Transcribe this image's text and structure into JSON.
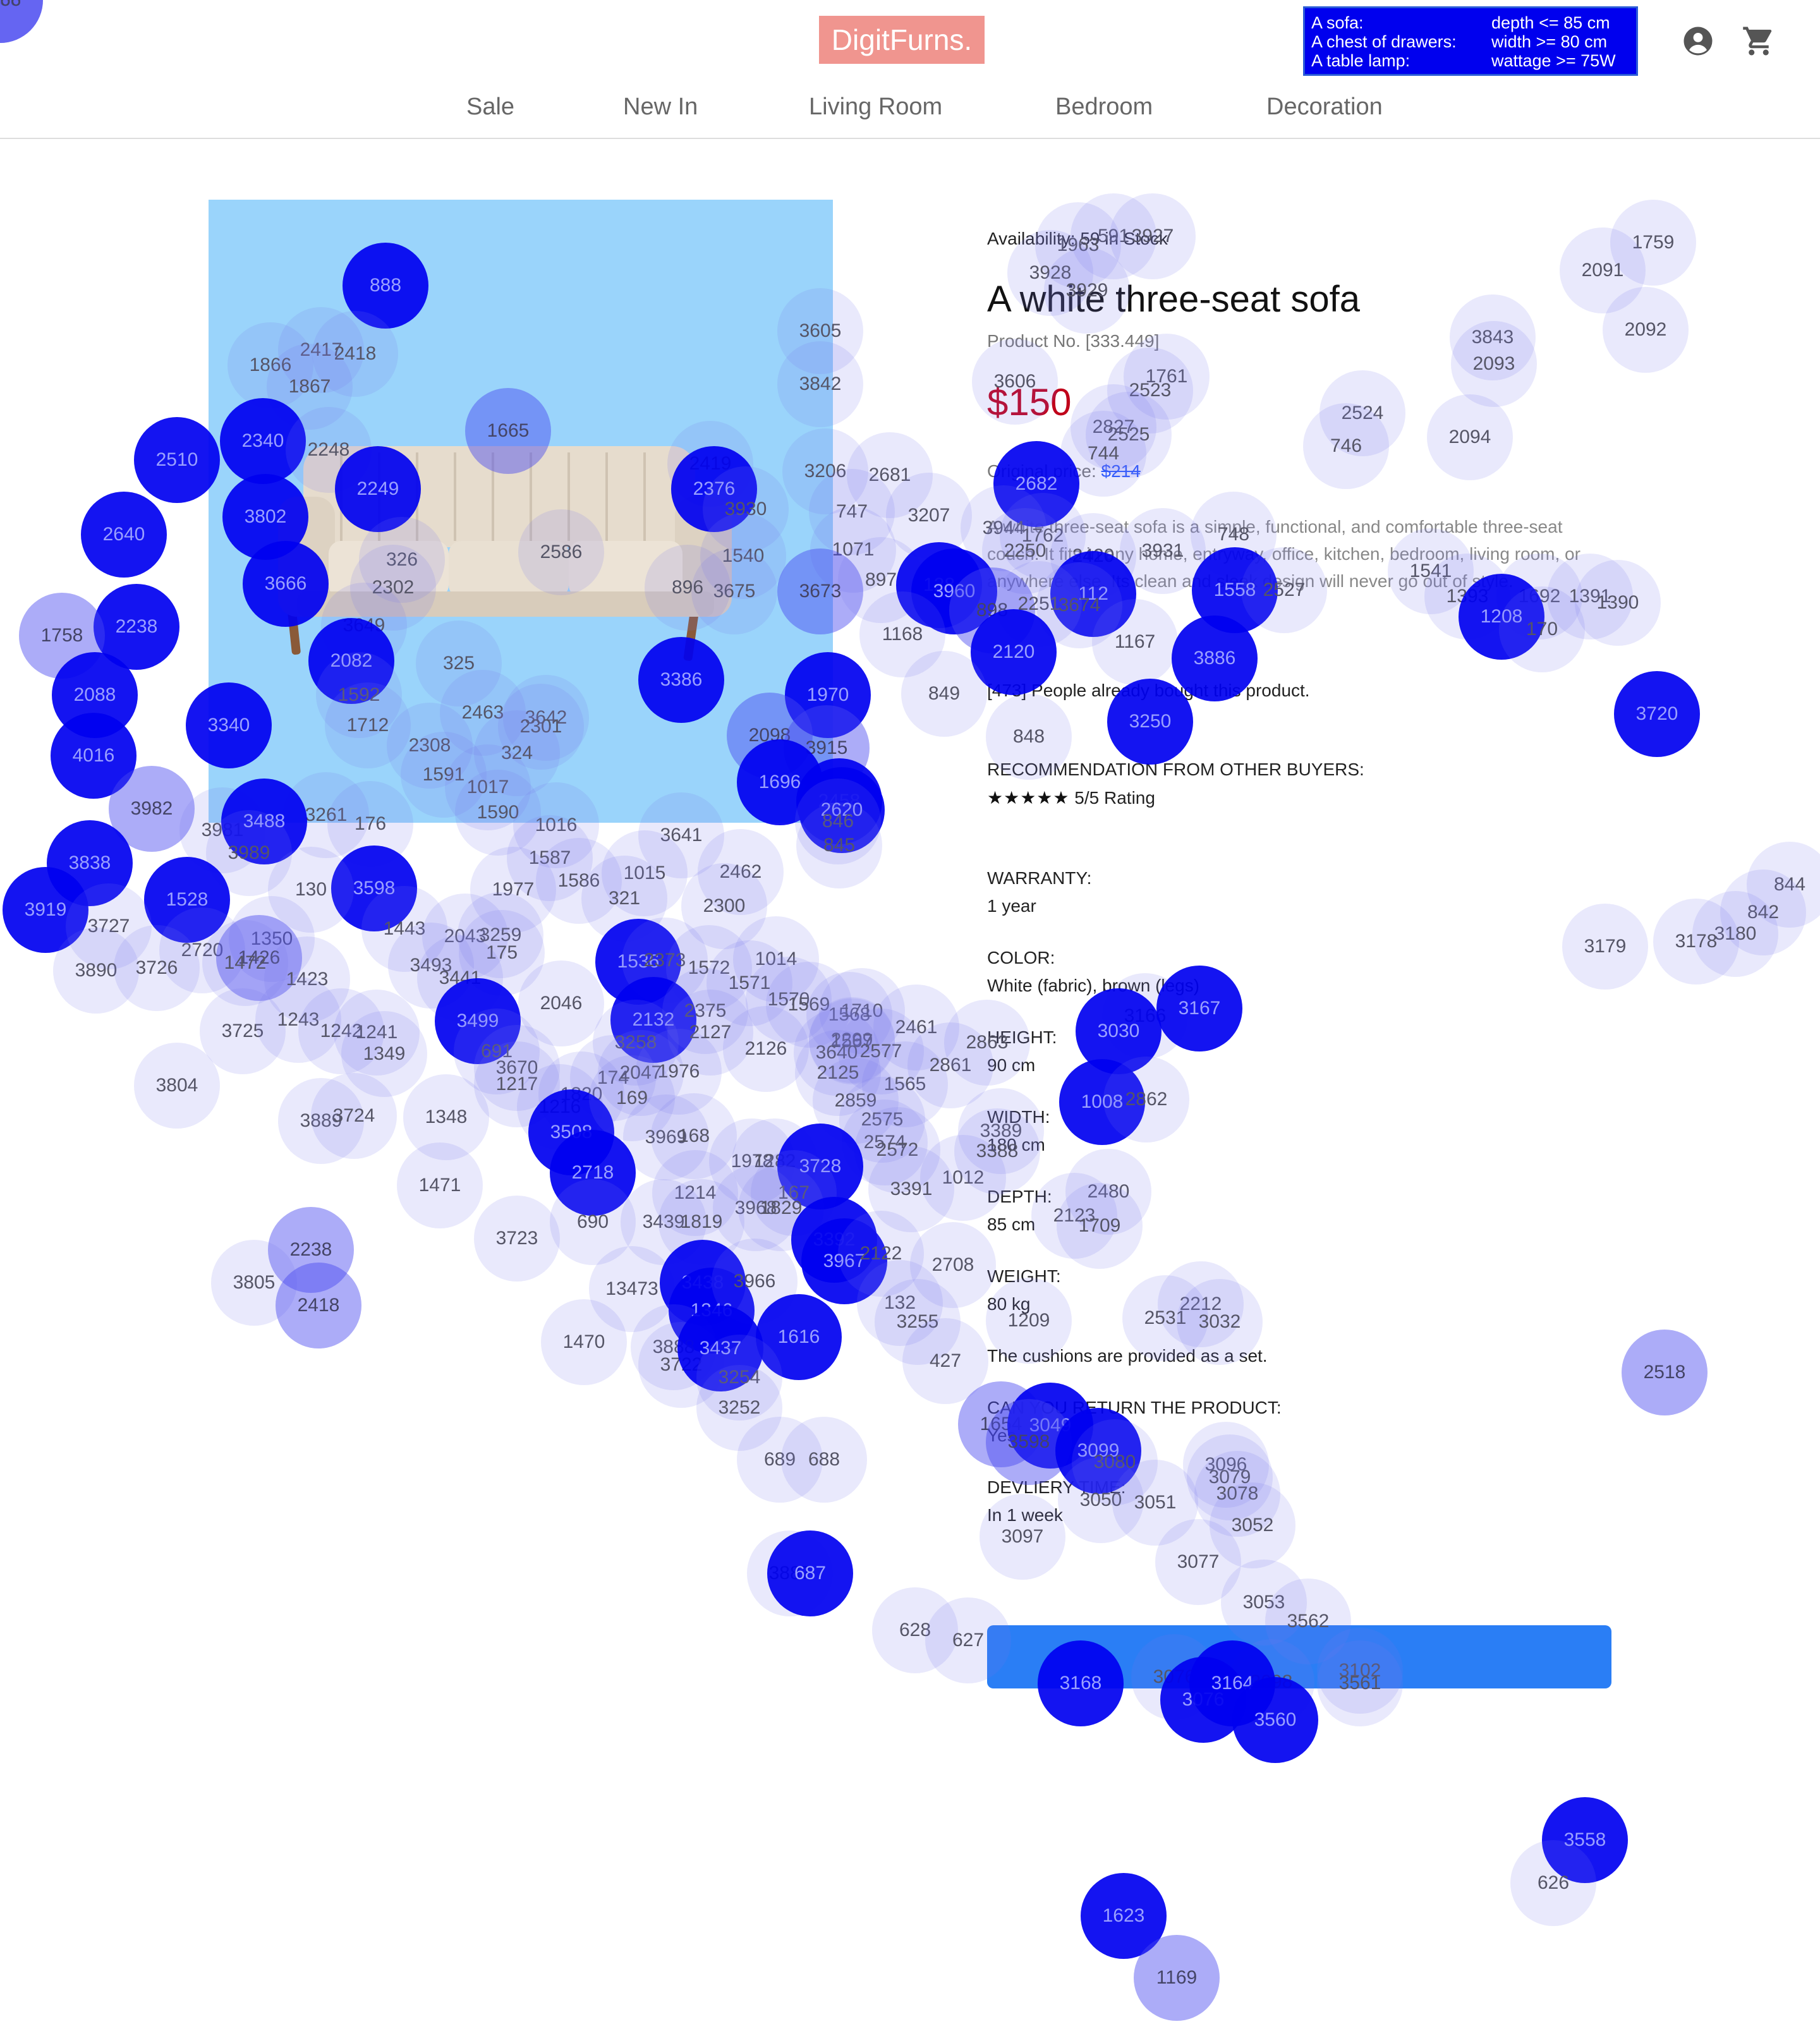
{
  "header": {
    "logo": "DigitFurns.",
    "criteria": [
      {
        "item": "A sofa:",
        "condition": "depth <= 85 cm"
      },
      {
        "item": "A chest of drawers:",
        "condition": "width >= 80 cm"
      },
      {
        "item": "A table lamp:",
        "condition": "wattage >= 75W"
      }
    ],
    "icons": {
      "account": "account-circle-icon",
      "cart": "shopping-cart-icon"
    },
    "nav": [
      "Sale",
      "New In",
      "Living Room",
      "Bedroom",
      "Decoration"
    ]
  },
  "product": {
    "availability_label": "Availability:",
    "availability_value": "59 in Stock",
    "title": "A white three-seat sofa",
    "product_no": "Product No. [333.449]",
    "price": "$150",
    "original_price_label": "Original price:",
    "original_price": "$214",
    "description": "A white three-seat sofa is a simple, functional, and comfortable three-seat couch. It fits in any home, entryway, office, kitchen, bedroom, living room, or anywhere else. Its clean and sleek design will never go out of style.",
    "social_proof": "[473] People already bought this product.",
    "recommendation_heading": "RECOMMENDATION FROM OTHER BUYERS:",
    "rating_stars": "★★★★★",
    "rating_text": "5/5 Rating",
    "warranty_heading": "WARRANTY:",
    "warranty_value": "1 year",
    "color_heading": "COLOR:",
    "color_value": "White (fabric), brown (legs)",
    "height_heading": "HEIGHT:",
    "height_value": "90 cm",
    "width_heading": "WIDTH:",
    "width_value": "180 cm",
    "depth_heading": "DEPTH:",
    "depth_value": "85 cm",
    "weight_heading": "WEIGHT:",
    "weight_value": "80 kg",
    "cushions_note": "The cushions are provided as a set.",
    "return_heading": "CAN YOU RETURN THE PRODUCT:",
    "return_value": "Yes",
    "delivery_heading": "DEVLIERY TIME:",
    "delivery_value": "In 1 week",
    "add_to_cart_label": ""
  },
  "colors": {
    "logo_bg": "#f0958f",
    "criteria_bg": "#0000ee",
    "price": "#c0001a",
    "image_bg": "#9ad4fb",
    "button": "#2a7ef5",
    "fixation_dark": "#0000f0"
  },
  "fixations": [
    {
      "label": "888",
      "level": "dark"
    },
    {
      "label": "2417",
      "level": "light"
    },
    {
      "label": "2418",
      "level": "light"
    },
    {
      "label": "1866",
      "level": "light"
    },
    {
      "label": "1867",
      "level": "light"
    },
    {
      "label": "2340",
      "level": "dark"
    },
    {
      "label": "2248",
      "level": "light"
    },
    {
      "label": "2510",
      "level": "dark"
    },
    {
      "label": "2249",
      "level": "dark"
    },
    {
      "label": "3802",
      "level": "dark"
    },
    {
      "label": "2640",
      "level": "dark"
    },
    {
      "label": "3666",
      "level": "dark"
    },
    {
      "label": "326",
      "level": "light"
    },
    {
      "label": "2302",
      "level": "light"
    },
    {
      "label": "2238",
      "level": "dark"
    },
    {
      "label": "1758",
      "level": "mid"
    },
    {
      "label": "3649",
      "level": "light"
    },
    {
      "label": "2082",
      "level": "dark"
    },
    {
      "label": "325",
      "level": "light"
    },
    {
      "label": "1592",
      "level": "light"
    },
    {
      "label": "2088",
      "level": "dark"
    },
    {
      "label": "3340",
      "level": "dark"
    },
    {
      "label": "1712",
      "level": "light"
    },
    {
      "label": "2463",
      "level": "light"
    },
    {
      "label": "3642",
      "level": "light"
    },
    {
      "label": "2301",
      "level": "light"
    },
    {
      "label": "4016",
      "level": "dark"
    },
    {
      "label": "2308",
      "level": "light"
    },
    {
      "label": "324",
      "level": "light"
    },
    {
      "label": "1591",
      "level": "light"
    },
    {
      "label": "1017",
      "level": "light"
    },
    {
      "label": "1590",
      "level": "light"
    },
    {
      "label": "3982",
      "level": "mid"
    },
    {
      "label": "3261",
      "level": "light"
    },
    {
      "label": "176",
      "level": "light"
    },
    {
      "label": "3981",
      "level": "light"
    },
    {
      "label": "3488",
      "level": "dark"
    },
    {
      "label": "1016",
      "level": "light"
    },
    {
      "label": "1587",
      "level": "light"
    },
    {
      "label": "3641",
      "level": "light"
    },
    {
      "label": "3838",
      "level": "dark"
    },
    {
      "label": "3989",
      "level": "light"
    },
    {
      "label": "3598",
      "level": "dark"
    },
    {
      "label": "1015",
      "level": "light"
    },
    {
      "label": "2462",
      "level": "light"
    },
    {
      "label": "3919",
      "level": "dark"
    },
    {
      "label": "1528",
      "level": "dark"
    },
    {
      "label": "130",
      "level": "light"
    },
    {
      "label": "1977",
      "level": "light"
    },
    {
      "label": "1586",
      "level": "light"
    },
    {
      "label": "321",
      "level": "light"
    },
    {
      "label": "2300",
      "level": "light"
    },
    {
      "label": "3727",
      "level": "light"
    },
    {
      "label": "1443",
      "level": "light"
    },
    {
      "label": "2720",
      "level": "light"
    },
    {
      "label": "1350",
      "level": "light"
    },
    {
      "label": "2043",
      "level": "light"
    },
    {
      "label": "3259",
      "level": "light"
    },
    {
      "label": "175",
      "level": "light"
    },
    {
      "label": "1426",
      "level": "mid"
    },
    {
      "label": "1472",
      "level": "light"
    },
    {
      "label": "3890",
      "level": "light"
    },
    {
      "label": "3726",
      "level": "light"
    },
    {
      "label": "1423",
      "level": "light"
    },
    {
      "label": "3493",
      "level": "light"
    },
    {
      "label": "3441",
      "level": "light"
    },
    {
      "label": "1536",
      "level": "dark"
    },
    {
      "label": "2373",
      "level": "light"
    },
    {
      "label": "1572",
      "level": "light"
    },
    {
      "label": "1014",
      "level": "light"
    },
    {
      "label": "1571",
      "level": "light"
    },
    {
      "label": "3725",
      "level": "light"
    },
    {
      "label": "1243",
      "level": "light"
    },
    {
      "label": "1242",
      "level": "light"
    },
    {
      "label": "1241",
      "level": "light"
    },
    {
      "label": "3499",
      "level": "dark"
    },
    {
      "label": "2046",
      "level": "light"
    },
    {
      "label": "2132",
      "level": "dark"
    },
    {
      "label": "2375",
      "level": "light"
    },
    {
      "label": "2127",
      "level": "light"
    },
    {
      "label": "1570",
      "level": "light"
    },
    {
      "label": "1569",
      "level": "light"
    },
    {
      "label": "1568",
      "level": "light"
    },
    {
      "label": "1710",
      "level": "light"
    },
    {
      "label": "2299",
      "level": "light"
    },
    {
      "label": "2461",
      "level": "light"
    },
    {
      "label": "1349",
      "level": "light"
    },
    {
      "label": "691",
      "level": "light"
    },
    {
      "label": "3670",
      "level": "light"
    },
    {
      "label": "3258",
      "level": "light"
    },
    {
      "label": "2126",
      "level": "light"
    },
    {
      "label": "1567",
      "level": "light"
    },
    {
      "label": "3640",
      "level": "light"
    },
    {
      "label": "2577",
      "level": "light"
    },
    {
      "label": "3804",
      "level": "light"
    },
    {
      "label": "1217",
      "level": "light"
    },
    {
      "label": "1820",
      "level": "light"
    },
    {
      "label": "174",
      "level": "light"
    },
    {
      "label": "2047",
      "level": "light"
    },
    {
      "label": "1976",
      "level": "light"
    },
    {
      "label": "2125",
      "level": "light"
    },
    {
      "label": "1565",
      "level": "light"
    },
    {
      "label": "2861",
      "level": "light"
    },
    {
      "label": "3889",
      "level": "light"
    },
    {
      "label": "3724",
      "level": "light"
    },
    {
      "label": "1348",
      "level": "light"
    },
    {
      "label": "1216",
      "level": "light"
    },
    {
      "label": "3508",
      "level": "dark"
    },
    {
      "label": "169",
      "level": "light"
    },
    {
      "label": "2859",
      "level": "light"
    },
    {
      "label": "2575",
      "level": "light"
    },
    {
      "label": "3969",
      "level": "light"
    },
    {
      "label": "168",
      "level": "light"
    },
    {
      "label": "2574",
      "level": "light"
    },
    {
      "label": "2572",
      "level": "light"
    },
    {
      "label": "1012",
      "level": "light"
    },
    {
      "label": "2718",
      "level": "dark"
    },
    {
      "label": "1978",
      "level": "light"
    },
    {
      "label": "1282",
      "level": "light"
    },
    {
      "label": "3728",
      "level": "dark"
    },
    {
      "label": "3391",
      "level": "light"
    },
    {
      "label": "1471",
      "level": "light"
    },
    {
      "label": "1214",
      "level": "light"
    },
    {
      "label": "167",
      "level": "light"
    },
    {
      "label": "3968",
      "level": "light"
    },
    {
      "label": "1829",
      "level": "light"
    },
    {
      "label": "2238",
      "level": "mid"
    },
    {
      "label": "3723",
      "level": "light"
    },
    {
      "label": "690",
      "level": "light"
    },
    {
      "label": "3439",
      "level": "light"
    },
    {
      "label": "1819",
      "level": "light"
    },
    {
      "label": "3392",
      "level": "dark"
    },
    {
      "label": "3967",
      "level": "dark"
    },
    {
      "label": "3805",
      "level": "light"
    },
    {
      "label": "2418",
      "level": "mid"
    },
    {
      "label": "13473",
      "level": "light"
    },
    {
      "label": "3438",
      "level": "dark"
    },
    {
      "label": "1346",
      "level": "dark"
    },
    {
      "label": "3966",
      "level": "light"
    },
    {
      "label": "132",
      "level": "light"
    },
    {
      "label": "3255",
      "level": "light"
    },
    {
      "label": "1470",
      "level": "light"
    },
    {
      "label": "3888",
      "level": "light"
    },
    {
      "label": "3722",
      "level": "light"
    },
    {
      "label": "3437",
      "level": "dark"
    },
    {
      "label": "1616",
      "level": "dark"
    },
    {
      "label": "427",
      "level": "light"
    },
    {
      "label": "3254",
      "level": "light"
    },
    {
      "label": "3252",
      "level": "light"
    },
    {
      "label": "689",
      "level": "light"
    },
    {
      "label": "688",
      "level": "light"
    },
    {
      "label": "3887",
      "level": "light"
    },
    {
      "label": "687",
      "level": "dark"
    },
    {
      "label": "628",
      "level": "light"
    },
    {
      "label": "627",
      "level": "light"
    },
    {
      "label": "591",
      "level": "light"
    },
    {
      "label": "3927",
      "level": "light"
    },
    {
      "label": "1963",
      "level": "light"
    },
    {
      "label": "3928",
      "level": "light"
    },
    {
      "label": "3929",
      "level": "light"
    },
    {
      "label": "1759",
      "level": "light"
    },
    {
      "label": "2091",
      "level": "light"
    },
    {
      "label": "2092",
      "level": "light"
    },
    {
      "label": "3605",
      "level": "light"
    },
    {
      "label": "3842",
      "level": "light"
    },
    {
      "label": "3843",
      "level": "light"
    },
    {
      "label": "2093",
      "level": "light"
    },
    {
      "label": "3606",
      "level": "light"
    },
    {
      "label": "1761",
      "level": "light"
    },
    {
      "label": "2523",
      "level": "light"
    },
    {
      "label": "2524",
      "level": "light"
    },
    {
      "label": "2827",
      "level": "light"
    },
    {
      "label": "2525",
      "level": "light"
    },
    {
      "label": "744",
      "level": "light"
    },
    {
      "label": "746",
      "level": "light"
    },
    {
      "label": "2094",
      "level": "light"
    },
    {
      "label": "1665",
      "level": "mid"
    },
    {
      "label": "2419",
      "level": "light"
    },
    {
      "label": "2376",
      "level": "dark"
    },
    {
      "label": "3206",
      "level": "light"
    },
    {
      "label": "2681",
      "level": "light"
    },
    {
      "label": "2682",
      "level": "dark"
    },
    {
      "label": "3930",
      "level": "light"
    },
    {
      "label": "747",
      "level": "light"
    },
    {
      "label": "3207",
      "level": "light"
    },
    {
      "label": "3944",
      "level": "light"
    },
    {
      "label": "1762",
      "level": "light"
    },
    {
      "label": "748",
      "level": "light"
    },
    {
      "label": "2586",
      "level": "light"
    },
    {
      "label": "1540",
      "level": "light"
    },
    {
      "label": "1071",
      "level": "light"
    },
    {
      "label": "2250",
      "level": "light"
    },
    {
      "label": "2420",
      "level": "light"
    },
    {
      "label": "3931",
      "level": "light"
    },
    {
      "label": "1541",
      "level": "light"
    },
    {
      "label": "3675",
      "level": "light"
    },
    {
      "label": "3673",
      "level": "mid"
    },
    {
      "label": "897",
      "level": "light"
    },
    {
      "label": "128",
      "level": "dark"
    },
    {
      "label": "3960",
      "level": "dark"
    },
    {
      "label": "112",
      "level": "dark"
    },
    {
      "label": "1558",
      "level": "dark"
    },
    {
      "label": "2527",
      "level": "light"
    },
    {
      "label": "1393",
      "level": "light"
    },
    {
      "label": "1692",
      "level": "light"
    },
    {
      "label": "1391",
      "level": "light"
    },
    {
      "label": "1390",
      "level": "light"
    },
    {
      "label": "896",
      "level": "light"
    },
    {
      "label": "898",
      "level": "mid"
    },
    {
      "label": "2251",
      "level": "light"
    },
    {
      "label": "3674",
      "level": "light"
    },
    {
      "label": "1208",
      "level": "dark"
    },
    {
      "label": "170",
      "level": "light"
    },
    {
      "label": "1168",
      "level": "light"
    },
    {
      "label": "1167",
      "level": "light"
    },
    {
      "label": "3886",
      "level": "dark"
    },
    {
      "label": "2120",
      "level": "dark"
    },
    {
      "label": "3386",
      "level": "dark"
    },
    {
      "label": "1970",
      "level": "dark"
    },
    {
      "label": "849",
      "level": "light"
    },
    {
      "label": "3720",
      "level": "dark"
    },
    {
      "label": "3250",
      "level": "dark"
    },
    {
      "label": "2098",
      "level": "mid"
    },
    {
      "label": "3915",
      "level": "mid"
    },
    {
      "label": "848",
      "level": "light"
    },
    {
      "label": "1696",
      "level": "dark"
    },
    {
      "label": "2458",
      "level": "dark"
    },
    {
      "label": "2620",
      "level": "dark"
    },
    {
      "label": "846",
      "level": "light"
    },
    {
      "label": "845",
      "level": "light"
    },
    {
      "label": "844",
      "level": "light"
    },
    {
      "label": "842",
      "level": "light"
    },
    {
      "label": "3180",
      "level": "light"
    },
    {
      "label": "3179",
      "level": "light"
    },
    {
      "label": "3178",
      "level": "light"
    },
    {
      "label": "3166",
      "level": "light"
    },
    {
      "label": "3167",
      "level": "dark"
    },
    {
      "label": "2863",
      "level": "light"
    },
    {
      "label": "3030",
      "level": "dark"
    },
    {
      "label": "1008",
      "level": "dark"
    },
    {
      "label": "2862",
      "level": "light"
    },
    {
      "label": "3389",
      "level": "light"
    },
    {
      "label": "3388",
      "level": "light"
    },
    {
      "label": "2480",
      "level": "light"
    },
    {
      "label": "2123",
      "level": "light"
    },
    {
      "label": "1709",
      "level": "light"
    },
    {
      "label": "2122",
      "level": "light"
    },
    {
      "label": "2708",
      "level": "light"
    },
    {
      "label": "2212",
      "level": "light"
    },
    {
      "label": "2531",
      "level": "light"
    },
    {
      "label": "1209",
      "level": "light"
    },
    {
      "label": "3032",
      "level": "light"
    },
    {
      "label": "2518",
      "level": "mid"
    },
    {
      "label": "1654",
      "level": "mid"
    },
    {
      "label": "3049",
      "level": "dark"
    },
    {
      "label": "3598",
      "level": "mid"
    },
    {
      "label": "3099",
      "level": "dark"
    },
    {
      "label": "3080",
      "level": "light"
    },
    {
      "label": "3096",
      "level": "light"
    },
    {
      "label": "3079",
      "level": "light"
    },
    {
      "label": "3078",
      "level": "light"
    },
    {
      "label": "3050",
      "level": "light"
    },
    {
      "label": "3051",
      "level": "light"
    },
    {
      "label": "3052",
      "level": "light"
    },
    {
      "label": "3097",
      "level": "light"
    },
    {
      "label": "3077",
      "level": "light"
    },
    {
      "label": "3053",
      "level": "light"
    },
    {
      "label": "3562",
      "level": "light"
    },
    {
      "label": "3076",
      "level": "light"
    },
    {
      "label": "3098",
      "level": "light"
    },
    {
      "label": "3102",
      "level": "light"
    },
    {
      "label": "3561",
      "level": "light"
    },
    {
      "label": "3076",
      "level": "dark"
    },
    {
      "label": "3164",
      "level": "dark"
    },
    {
      "label": "3168",
      "level": "dark"
    },
    {
      "label": "3560",
      "level": "dark"
    },
    {
      "label": "3558",
      "level": "dark"
    },
    {
      "label": "626",
      "level": "light"
    },
    {
      "label": "1623",
      "level": "dark"
    },
    {
      "label": "1169",
      "level": "mid"
    },
    {
      "label": "1388",
      "level": "mid"
    },
    {
      "label": "1758",
      "level": "mid"
    },
    {
      "label": "1066",
      "level": "mid"
    }
  ]
}
